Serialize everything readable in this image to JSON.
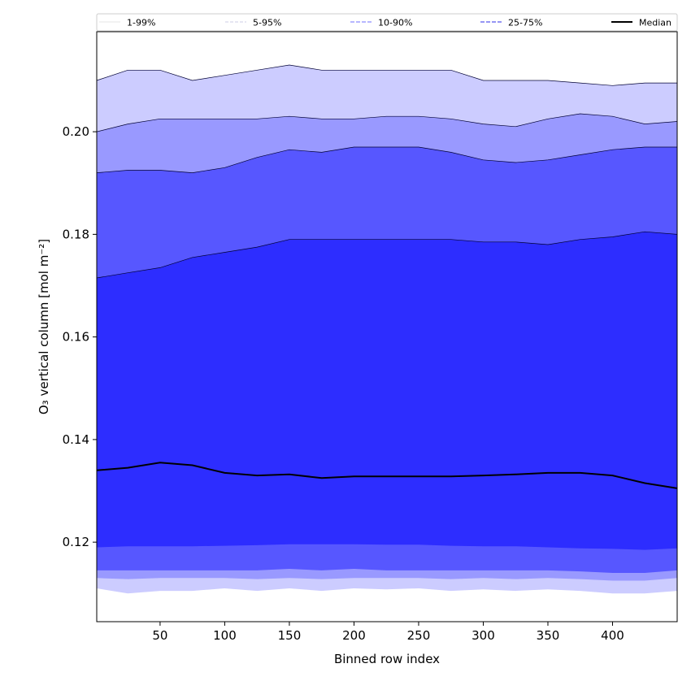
{
  "chart_data": {
    "type": "area",
    "xlabel": "Binned row index",
    "ylabel": "O₃ vertical column [mol m⁻²]",
    "xlim": [
      1,
      450
    ],
    "ylim": [
      0.1045,
      0.2195
    ],
    "xticks": [
      50,
      100,
      150,
      200,
      250,
      300,
      350,
      400
    ],
    "yticks": [
      0.12,
      0.14,
      0.16,
      0.18,
      0.2
    ],
    "grid": false,
    "legend_position": "top",
    "colors": {
      "band_1_99": "#ccccff",
      "band_5_95": "#9999ff",
      "band_10_90": "#5757ff",
      "band_25_75": "#2d2dff",
      "median": "#000000"
    },
    "legend": [
      {
        "label": "1-99%",
        "style": "solid-thin",
        "color": "#cccccc"
      },
      {
        "label": "5-95%",
        "style": "dashed-thin",
        "color": "#9999cc"
      },
      {
        "label": "10-90%",
        "style": "dashed",
        "color": "#8c8cff"
      },
      {
        "label": "25-75%",
        "style": "dashed",
        "color": "#5757ee"
      },
      {
        "label": "Median",
        "style": "solid-thick",
        "color": "#000000"
      }
    ],
    "x": [
      1,
      25,
      50,
      75,
      100,
      125,
      150,
      175,
      200,
      225,
      250,
      275,
      300,
      325,
      350,
      375,
      400,
      425,
      450
    ],
    "series": [
      {
        "name": "1-99%",
        "lower": [
          0.111,
          0.11,
          0.1105,
          0.1105,
          0.111,
          0.1105,
          0.111,
          0.1105,
          0.111,
          0.1108,
          0.111,
          0.1105,
          0.1108,
          0.1105,
          0.1108,
          0.1105,
          0.11,
          0.11,
          0.1105
        ],
        "upper": [
          0.21,
          0.212,
          0.212,
          0.21,
          0.211,
          0.212,
          0.213,
          0.212,
          0.212,
          0.212,
          0.212,
          0.212,
          0.21,
          0.21,
          0.21,
          0.2095,
          0.209,
          0.2095,
          0.2095
        ]
      },
      {
        "name": "5-95%",
        "lower": [
          0.113,
          0.1128,
          0.113,
          0.113,
          0.113,
          0.1128,
          0.113,
          0.1128,
          0.113,
          0.113,
          0.113,
          0.1128,
          0.113,
          0.1128,
          0.113,
          0.1128,
          0.1125,
          0.1125,
          0.113
        ],
        "upper": [
          0.2,
          0.2015,
          0.2025,
          0.2025,
          0.2025,
          0.2025,
          0.203,
          0.2025,
          0.2025,
          0.203,
          0.203,
          0.2025,
          0.2015,
          0.201,
          0.2025,
          0.2035,
          0.203,
          0.2015,
          0.202
        ]
      },
      {
        "name": "10-90%",
        "lower": [
          0.1145,
          0.1145,
          0.1145,
          0.1145,
          0.1145,
          0.1145,
          0.1148,
          0.1145,
          0.1148,
          0.1145,
          0.1145,
          0.1145,
          0.1145,
          0.1145,
          0.1145,
          0.1143,
          0.114,
          0.114,
          0.1145
        ],
        "upper": [
          0.192,
          0.1925,
          0.1925,
          0.192,
          0.193,
          0.195,
          0.1965,
          0.196,
          0.197,
          0.197,
          0.197,
          0.196,
          0.1945,
          0.194,
          0.1945,
          0.1955,
          0.1965,
          0.197,
          0.197
        ]
      },
      {
        "name": "25-75%",
        "lower": [
          0.119,
          0.1192,
          0.1192,
          0.1192,
          0.1193,
          0.1194,
          0.1196,
          0.1196,
          0.1196,
          0.1195,
          0.1195,
          0.1193,
          0.1192,
          0.1192,
          0.119,
          0.1188,
          0.1187,
          0.1185,
          0.1188
        ],
        "upper": [
          0.1715,
          0.1725,
          0.1735,
          0.1755,
          0.1765,
          0.1775,
          0.179,
          0.179,
          0.179,
          0.179,
          0.179,
          0.179,
          0.1785,
          0.1785,
          0.178,
          0.179,
          0.1795,
          0.1805,
          0.18
        ]
      },
      {
        "name": "Median",
        "values": [
          0.134,
          0.1345,
          0.1355,
          0.135,
          0.1335,
          0.133,
          0.1332,
          0.1325,
          0.1328,
          0.1328,
          0.1328,
          0.1328,
          0.133,
          0.1332,
          0.1335,
          0.1335,
          0.133,
          0.1315,
          0.1305
        ]
      }
    ]
  }
}
